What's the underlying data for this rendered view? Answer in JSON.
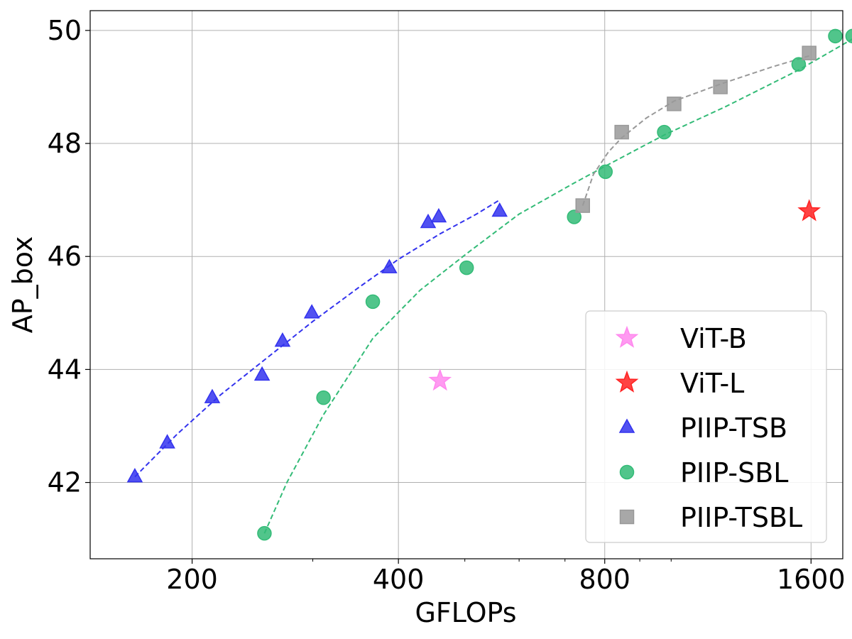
{
  "chart_data": {
    "type": "scatter",
    "xscale": "log2",
    "xlabel": "GFLOPs",
    "ylabel": "AP_box",
    "xlim": [
      142,
      1780
    ],
    "ylim": [
      40.65,
      50.35
    ],
    "xticks": [
      {
        "value": 200,
        "label": "200"
      },
      {
        "value": 400,
        "label": "400"
      },
      {
        "value": 800,
        "label": "800"
      },
      {
        "value": 1600,
        "label": "1600"
      }
    ],
    "yticks": [
      {
        "value": 42,
        "label": "42"
      },
      {
        "value": 44,
        "label": "44"
      },
      {
        "value": 46,
        "label": "46"
      },
      {
        "value": 48,
        "label": "48"
      },
      {
        "value": 50,
        "label": "50"
      }
    ],
    "grid": true,
    "legend_position": "lower-right",
    "series": [
      {
        "name": "ViT-B",
        "marker": "star",
        "color": "#ff88ee",
        "points": [
          [
            460,
            43.8
          ]
        ]
      },
      {
        "name": "ViT-L",
        "marker": "star",
        "color": "#ff2222",
        "points": [
          [
            1590,
            46.8
          ]
        ]
      },
      {
        "name": "PIIP-TSB",
        "marker": "triangle",
        "color": "#3333ee",
        "points": [
          [
            165,
            42.1
          ],
          [
            184,
            42.7
          ],
          [
            214,
            43.5
          ],
          [
            253,
            43.9
          ],
          [
            271,
            44.5
          ],
          [
            299,
            45.0
          ],
          [
            388,
            45.8
          ],
          [
            442,
            46.6
          ],
          [
            458,
            46.7
          ],
          [
            562,
            46.8
          ]
        ],
        "fit": [
          [
            165,
            42.1
          ],
          [
            190,
            42.85
          ],
          [
            220,
            43.55
          ],
          [
            260,
            44.25
          ],
          [
            300,
            44.85
          ],
          [
            350,
            45.45
          ],
          [
            400,
            45.95
          ],
          [
            460,
            46.4
          ],
          [
            520,
            46.75
          ],
          [
            562,
            47.0
          ]
        ]
      },
      {
        "name": "PIIP-SBL",
        "marker": "circle",
        "color": "#33bb77",
        "points": [
          [
            255,
            41.1
          ],
          [
            311,
            43.5
          ],
          [
            367,
            45.2
          ],
          [
            503,
            45.8
          ],
          [
            722,
            46.7
          ],
          [
            802,
            47.5
          ],
          [
            977,
            48.2
          ],
          [
            1535,
            49.4
          ],
          [
            1736,
            49.9
          ],
          [
            1840,
            49.9
          ]
        ],
        "fit": [
          [
            255,
            41.1
          ],
          [
            275,
            42.0
          ],
          [
            311,
            43.2
          ],
          [
            367,
            44.55
          ],
          [
            430,
            45.4
          ],
          [
            503,
            46.05
          ],
          [
            600,
            46.75
          ],
          [
            722,
            47.3
          ],
          [
            802,
            47.6
          ],
          [
            977,
            48.15
          ],
          [
            1200,
            48.65
          ],
          [
            1535,
            49.3
          ],
          [
            1840,
            49.85
          ]
        ]
      },
      {
        "name": "PIIP-TSBL",
        "marker": "square",
        "color": "#999999",
        "points": [
          [
            743,
            46.9
          ],
          [
            847,
            48.2
          ],
          [
            1010,
            48.7
          ],
          [
            1180,
            49.0
          ],
          [
            1590,
            49.6
          ]
        ],
        "fit": [
          [
            743,
            46.9
          ],
          [
            770,
            47.45
          ],
          [
            810,
            47.85
          ],
          [
            847,
            48.1
          ],
          [
            920,
            48.45
          ],
          [
            1010,
            48.75
          ],
          [
            1180,
            49.05
          ],
          [
            1400,
            49.35
          ],
          [
            1590,
            49.55
          ]
        ]
      }
    ]
  }
}
